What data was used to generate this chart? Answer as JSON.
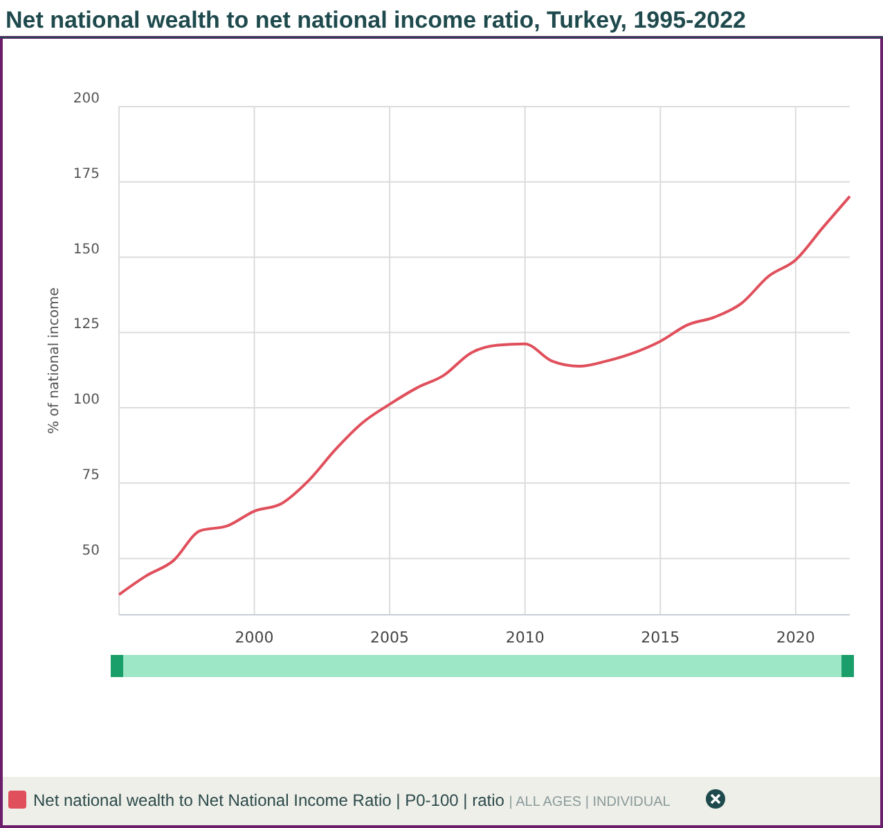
{
  "chart_data": {
    "type": "line",
    "title": "Net national wealth to net national income ratio, Turkey, 1995-2022",
    "ylabel": "% of national income",
    "x": [
      1995,
      1996,
      1997,
      1998,
      1999,
      2000,
      2001,
      2002,
      2003,
      2004,
      2005,
      2006,
      2007,
      2008,
      2009,
      2010,
      2011,
      2012,
      2013,
      2014,
      2015,
      2016,
      2017,
      2018,
      2019,
      2020,
      2021,
      2022
    ],
    "series": [
      {
        "name": "Net national wealth to Net National Income Ratio | P0-100 | ratio | ALL AGES | INDIVIDUAL",
        "color": "#e0505c",
        "values": [
          38,
          44.2,
          49.2,
          59.2,
          60.8,
          65.7,
          68.2,
          75.8,
          86.2,
          95.1,
          101.2,
          106.6,
          110.8,
          118.2,
          120.8,
          121.2,
          115.5,
          113.8,
          115.5,
          118.2,
          122.1,
          127.5,
          130.1,
          134.7,
          143.7,
          149.1,
          159.8,
          170.2
        ]
      }
    ],
    "xlim": [
      1995,
      2022
    ],
    "xticks": [
      2000,
      2005,
      2010,
      2015,
      2020
    ],
    "ylim": [
      31.3,
      200
    ],
    "yticks": [
      50,
      75,
      100,
      125,
      150,
      175,
      200
    ],
    "grid": true,
    "legend": "bottom",
    "marker": "none",
    "line_style": "solid"
  }
}
